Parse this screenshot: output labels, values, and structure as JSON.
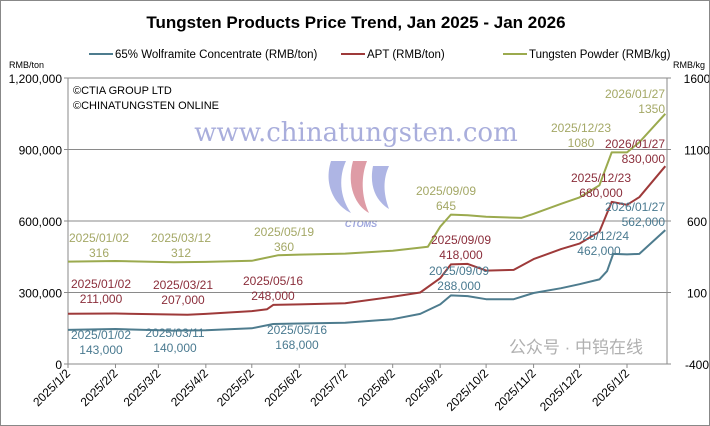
{
  "chart_data": {
    "type": "line",
    "title": "Tungsten Products Price Trend, Jan 2025 - Jan 2026",
    "left_axis": {
      "unit": "RMB/ton",
      "range": [
        0,
        1200000
      ],
      "ticks": [
        "0",
        "300,000",
        "600,000",
        "900,000",
        "1,200,000"
      ],
      "tick_values": [
        0,
        300000,
        600000,
        900000,
        1200000
      ]
    },
    "right_axis": {
      "unit": "RMB/kg",
      "range": [
        -400,
        1600
      ],
      "ticks": [
        "-400",
        "100",
        "600",
        "1100",
        "1600"
      ],
      "tick_values": [
        -400,
        100,
        600,
        1100,
        1600
      ]
    },
    "x_ticks": [
      "2025/1/2",
      "2025/2/2",
      "2025/3/2",
      "2025/4/2",
      "2025/5/2",
      "2025/6/2",
      "2025/7/2",
      "2025/8/2",
      "2025/9/2",
      "2025/10/2",
      "2025/11/2",
      "2025/12/2",
      "2026/1/2"
    ],
    "grid": true,
    "legend_position": "top",
    "copyright": [
      "©CTIA GROUP LTD",
      "©CHINATUNGSTEN ONLINE"
    ],
    "watermark": {
      "logo_text": "CTOMS",
      "url": "www.chinatungsten.com",
      "wechat": "公众号 · 中钨在线"
    },
    "series": [
      {
        "name": "65% Wolframite Concentrate (RMB/ton)",
        "axis": "left",
        "color": "#4E7C8E",
        "dates": [
          "2025-01-02",
          "2025-02-02",
          "2025-03-11",
          "2025-04-02",
          "2025-05-02",
          "2025-05-16",
          "2025-06-02",
          "2025-07-02",
          "2025-08-02",
          "2025-08-20",
          "2025-09-02",
          "2025-09-09",
          "2025-09-20",
          "2025-10-02",
          "2025-10-20",
          "2025-11-02",
          "2025-11-20",
          "2025-12-02",
          "2025-12-15",
          "2025-12-20",
          "2025-12-24",
          "2026-01-02",
          "2026-01-10",
          "2026-01-27"
        ],
        "values": [
          143000,
          147000,
          140000,
          142000,
          150000,
          168000,
          170000,
          173000,
          188000,
          210000,
          250000,
          288000,
          285000,
          272000,
          272000,
          298000,
          318000,
          335000,
          355000,
          390000,
          462000,
          460000,
          462000,
          562000
        ]
      },
      {
        "name": "APT (RMB/ton)",
        "axis": "left",
        "color": "#9E3A3A",
        "dates": [
          "2025-01-02",
          "2025-02-02",
          "2025-03-21",
          "2025-04-02",
          "2025-05-02",
          "2025-05-12",
          "2025-05-16",
          "2025-06-02",
          "2025-07-02",
          "2025-08-02",
          "2025-08-20",
          "2025-09-02",
          "2025-09-09",
          "2025-09-20",
          "2025-10-02",
          "2025-10-20",
          "2025-11-02",
          "2025-11-20",
          "2025-12-02",
          "2025-12-15",
          "2025-12-23",
          "2026-01-02",
          "2026-01-10",
          "2026-01-27"
        ],
        "values": [
          211000,
          212000,
          207000,
          210000,
          222000,
          230000,
          248000,
          250000,
          255000,
          282000,
          300000,
          360000,
          418000,
          420000,
          392000,
          395000,
          440000,
          482000,
          505000,
          555000,
          680000,
          668000,
          700000,
          830000
        ]
      },
      {
        "name": "Tungsten Powder (RMB/kg)",
        "axis": "right",
        "color": "#9BAA4E",
        "dates": [
          "2025-01-02",
          "2025-02-02",
          "2025-03-12",
          "2025-04-02",
          "2025-05-02",
          "2025-05-19",
          "2025-06-02",
          "2025-07-02",
          "2025-08-02",
          "2025-08-25",
          "2025-09-02",
          "2025-09-09",
          "2025-09-20",
          "2025-10-02",
          "2025-10-25",
          "2025-11-02",
          "2025-11-20",
          "2025-12-02",
          "2025-12-15",
          "2025-12-23",
          "2026-01-02",
          "2026-01-10",
          "2026-01-27"
        ],
        "values": [
          316,
          320,
          312,
          314,
          322,
          360,
          365,
          372,
          392,
          420,
          560,
          645,
          640,
          630,
          622,
          650,
          720,
          765,
          850,
          1080,
          1080,
          1150,
          1350
        ]
      }
    ],
    "annotations": [
      {
        "series": 2,
        "date": "2025/01/02",
        "value": "316"
      },
      {
        "series": 2,
        "date": "2025/03/12",
        "value": "312"
      },
      {
        "series": 2,
        "date": "2025/05/19",
        "value": "360"
      },
      {
        "series": 2,
        "date": "2025/09/09",
        "value": "645"
      },
      {
        "series": 2,
        "date": "2025/12/23",
        "value": "1080"
      },
      {
        "series": 2,
        "date": "2026/01/27",
        "value": "1350"
      },
      {
        "series": 1,
        "date": "2025/01/02",
        "value": "211,000"
      },
      {
        "series": 1,
        "date": "2025/03/21",
        "value": "207,000"
      },
      {
        "series": 1,
        "date": "2025/05/16",
        "value": "248,000"
      },
      {
        "series": 1,
        "date": "2025/09/09",
        "value": "418,000"
      },
      {
        "series": 1,
        "date": "2025/12/23",
        "value": "680,000"
      },
      {
        "series": 1,
        "date": "2026/01/27",
        "value": "830,000"
      },
      {
        "series": 0,
        "date": "2025/01/02",
        "value": "143,000"
      },
      {
        "series": 0,
        "date": "2025/03/11",
        "value": "140,000"
      },
      {
        "series": 0,
        "date": "2025/05/16",
        "value": "168,000"
      },
      {
        "series": 0,
        "date": "2025/09/09",
        "value": "288,000"
      },
      {
        "series": 0,
        "date": "2025/12/24",
        "value": "462,000"
      },
      {
        "series": 0,
        "date": "2026/01/27",
        "value": "562,000"
      }
    ],
    "label_colors": [
      "#4A7A90",
      "#8B2E3B",
      "#A4A866"
    ]
  }
}
